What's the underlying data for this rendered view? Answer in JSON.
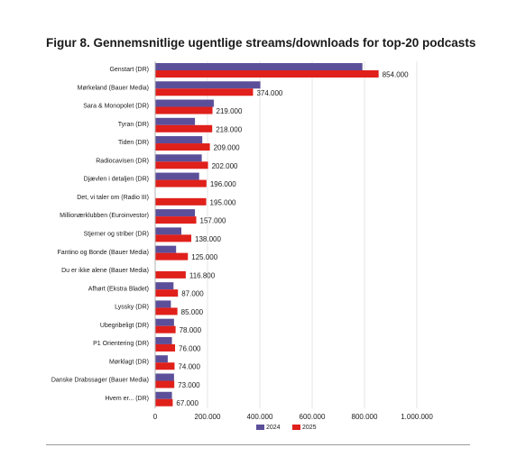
{
  "figure": {
    "title": "Figur 8. Gennemsnitlige ugentlige streams/downloads for top-20 podcasts"
  },
  "chart_data": {
    "type": "bar",
    "orientation": "horizontal",
    "categories": [
      "Genstart (DR)",
      "Mørkeland (Bauer Media)",
      "Sara & Monopolet (DR)",
      "Tyran (DR)",
      "Tiden (DR)",
      "Radiocavisen (DR)",
      "Djævlen i detaljen (DR)",
      "Det, vi taler om (Radio III)",
      "Millionærklubben (Euroinvestor)",
      "Stjerner og striber (DR)",
      "Fantino og Bonde (Bauer Media)",
      "Du er ikke alene (Bauer Media)",
      "Afhørt (Ekstra Bladet)",
      "Lyssky (DR)",
      "Ubegribeligt (DR)",
      "P1 Orientering (DR)",
      "Mørklagt (DR)",
      "Danske Drabssager (Bauer Media)",
      "Hvem er... (DR)"
    ],
    "series": [
      {
        "name": "2024",
        "color": "#5b4f9a",
        "values": [
          792000,
          402000,
          224000,
          152000,
          180000,
          178000,
          168000,
          null,
          152000,
          100000,
          80000,
          null,
          70000,
          60000,
          72000,
          64000,
          48000,
          72000,
          64000
        ]
      },
      {
        "name": "2025",
        "color": "#e0201b",
        "values": [
          854000,
          374000,
          219000,
          218000,
          209000,
          202000,
          196000,
          195000,
          157000,
          138000,
          125000,
          116800,
          87000,
          85000,
          78000,
          76000,
          74000,
          73000,
          67000
        ]
      }
    ],
    "data_labels": [
      "854.000",
      "374.000",
      "219.000",
      "218.000",
      "209.000",
      "202.000",
      "196.000",
      "195.000",
      "157.000",
      "138.000",
      "125.000",
      "116.800",
      "87.000",
      "85.000",
      "78.000",
      "76.000",
      "74.000",
      "73.000",
      "67.000"
    ],
    "x_ticks": [
      0,
      200000,
      400000,
      600000,
      800000,
      1000000
    ],
    "x_tick_labels": [
      "0",
      "200.000",
      "400.000",
      "600.000",
      "800.000",
      "1.000.000"
    ],
    "xlim": [
      0,
      1000000
    ],
    "xlabel": "",
    "ylabel": "",
    "grid": true,
    "legend": {
      "position": "bottom",
      "entries": [
        "2024",
        "2025"
      ]
    }
  }
}
